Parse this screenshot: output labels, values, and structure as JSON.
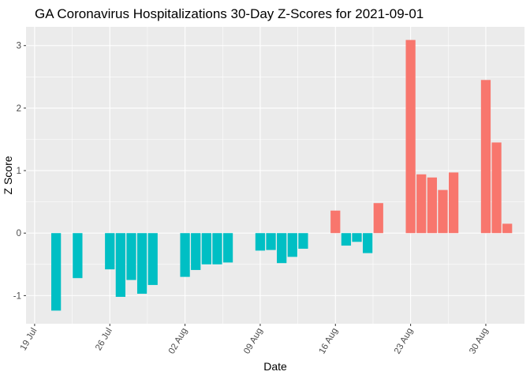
{
  "chart_data": {
    "type": "bar",
    "title": "GA Coronavirus Hospitalizations 30-Day Z-Scores for 2021-09-01",
    "xlabel": "Date",
    "ylabel": "Z Score",
    "ylim": [
      -1.45,
      3.3
    ],
    "yticks": [
      -1,
      0,
      1,
      2,
      3
    ],
    "xlim_days": [
      -0.8,
      45.6
    ],
    "xticks": [
      {
        "label": "19 Jul",
        "day": 0
      },
      {
        "label": "26 Jul",
        "day": 7
      },
      {
        "label": "02 Aug",
        "day": 14
      },
      {
        "label": "09 Aug",
        "day": 21
      },
      {
        "label": "16 Aug",
        "day": 28
      },
      {
        "label": "23 Aug",
        "day": 35
      },
      {
        "label": "30 Aug",
        "day": 42
      }
    ],
    "colors": {
      "positive": "#F8766D",
      "negative": "#00BFC4",
      "panel": "#EBEBEB",
      "grid": "#FFFFFF"
    },
    "x_day_offset_from": "2021-07-19",
    "series": [
      {
        "name": "z_score",
        "points": [
          {
            "date": "2021-07-21",
            "day": 2,
            "value": -1.24
          },
          {
            "date": "2021-07-23",
            "day": 4,
            "value": -0.72
          },
          {
            "date": "2021-07-26",
            "day": 7,
            "value": -0.58
          },
          {
            "date": "2021-07-27",
            "day": 8,
            "value": -1.02
          },
          {
            "date": "2021-07-28",
            "day": 9,
            "value": -0.75
          },
          {
            "date": "2021-07-29",
            "day": 10,
            "value": -0.97
          },
          {
            "date": "2021-07-30",
            "day": 11,
            "value": -0.83
          },
          {
            "date": "2021-08-02",
            "day": 14,
            "value": -0.7
          },
          {
            "date": "2021-08-03",
            "day": 15,
            "value": -0.59
          },
          {
            "date": "2021-08-04",
            "day": 16,
            "value": -0.5
          },
          {
            "date": "2021-08-05",
            "day": 17,
            "value": -0.5
          },
          {
            "date": "2021-08-06",
            "day": 18,
            "value": -0.47
          },
          {
            "date": "2021-08-09",
            "day": 21,
            "value": -0.28
          },
          {
            "date": "2021-08-10",
            "day": 22,
            "value": -0.27
          },
          {
            "date": "2021-08-11",
            "day": 23,
            "value": -0.48
          },
          {
            "date": "2021-08-12",
            "day": 24,
            "value": -0.38
          },
          {
            "date": "2021-08-13",
            "day": 25,
            "value": -0.25
          },
          {
            "date": "2021-08-16",
            "day": 28,
            "value": 0.36
          },
          {
            "date": "2021-08-17",
            "day": 29,
            "value": -0.2
          },
          {
            "date": "2021-08-18",
            "day": 30,
            "value": -0.14
          },
          {
            "date": "2021-08-19",
            "day": 31,
            "value": -0.32
          },
          {
            "date": "2021-08-20",
            "day": 32,
            "value": 0.48
          },
          {
            "date": "2021-08-23",
            "day": 35,
            "value": 3.09
          },
          {
            "date": "2021-08-24",
            "day": 36,
            "value": 0.94
          },
          {
            "date": "2021-08-25",
            "day": 37,
            "value": 0.89
          },
          {
            "date": "2021-08-26",
            "day": 38,
            "value": 0.69
          },
          {
            "date": "2021-08-27",
            "day": 39,
            "value": 0.97
          },
          {
            "date": "2021-08-30",
            "day": 42,
            "value": 2.45
          },
          {
            "date": "2021-08-31",
            "day": 43,
            "value": 1.45
          },
          {
            "date": "2021-09-01",
            "day": 44,
            "value": 0.15
          }
        ]
      }
    ]
  }
}
